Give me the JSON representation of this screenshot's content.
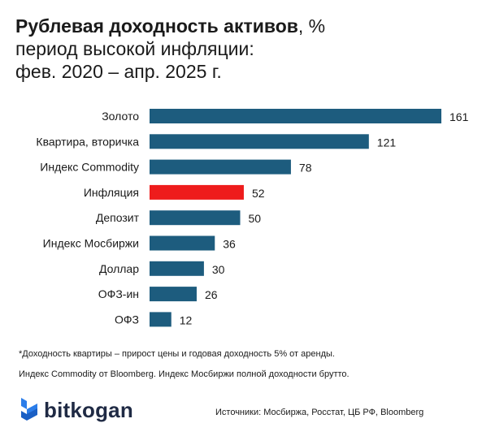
{
  "title": {
    "bold": "Рублевая доходность активов",
    "unit_suffix": ", %",
    "line2": "период высокой инфляции:",
    "line3": "фев. 2020 – апр. 2025 г."
  },
  "chart_data": {
    "type": "bar",
    "orientation": "horizontal",
    "categories": [
      "Золото",
      "Квартира, вторичка",
      "Индекс Commodity",
      "Инфляция",
      "Депозит",
      "Индекс Мосбиржи",
      "Доллар",
      "ОФЗ-ин",
      "ОФЗ"
    ],
    "values": [
      161,
      121,
      78,
      52,
      50,
      36,
      30,
      26,
      12
    ],
    "bar_color": "#1d5c7e",
    "highlight_color": "#ee1c1c",
    "highlight_category": "Инфляция",
    "xlim": [
      0,
      161
    ],
    "grid": false,
    "data_labels": true
  },
  "notes": {
    "note1": "*Доходность квартиры – прирост цены и годовая доходность 5% от аренды.",
    "note2": "Индекс Commodity от Bloomberg. Индекс Мосбиржи полной доходности брутто."
  },
  "footer": {
    "logo_text": "bitkogan",
    "logo_icon": "bitkogan-logo-icon",
    "logo_color": "#2b7de9",
    "sources": "Источники: Мосбиржа, Росстат, ЦБ РФ, Bloomberg"
  }
}
